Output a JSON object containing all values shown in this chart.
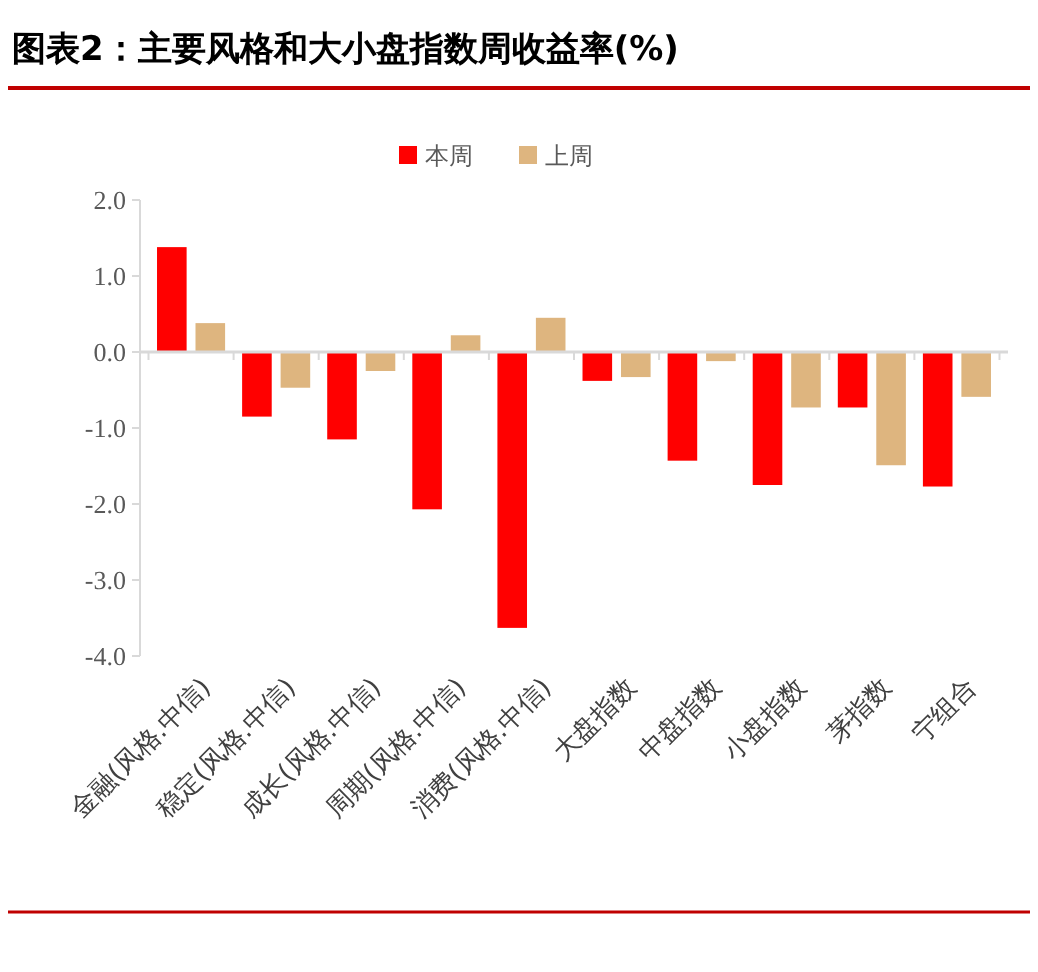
{
  "chart_data": {
    "type": "bar",
    "title": "图表2：主要风格和大小盘指数周收益率(%)",
    "categories": [
      "金融(风格.中信)",
      "稳定(风格.中信)",
      "成长(风格.中信)",
      "周期(风格.中信)",
      "消费(风格.中信)",
      "大盘指数",
      "中盘指数",
      "小盘指数",
      "茅指数",
      "宁组合"
    ],
    "series": [
      {
        "name": "本周",
        "color": "#ff0000",
        "values": [
          1.38,
          -0.85,
          -1.15,
          -2.07,
          -3.63,
          -0.38,
          -1.43,
          -1.75,
          -0.73,
          -1.77
        ]
      },
      {
        "name": "上周",
        "color": "#deb57f",
        "values": [
          0.38,
          -0.47,
          -0.25,
          0.22,
          0.45,
          -0.33,
          -0.12,
          -0.73,
          -1.49,
          -0.59
        ]
      }
    ],
    "ylim": [
      -4,
      2
    ],
    "yticks": [
      {
        "value": -4,
        "label": "-4.0"
      },
      {
        "value": -3,
        "label": "-3.0"
      },
      {
        "value": -2,
        "label": "-2.0"
      },
      {
        "value": -1,
        "label": "-1.0"
      },
      {
        "value": 0,
        "label": "0.0"
      },
      {
        "value": 1,
        "label": "1.0"
      },
      {
        "value": 2,
        "label": "2.0"
      }
    ],
    "legend": "top"
  }
}
